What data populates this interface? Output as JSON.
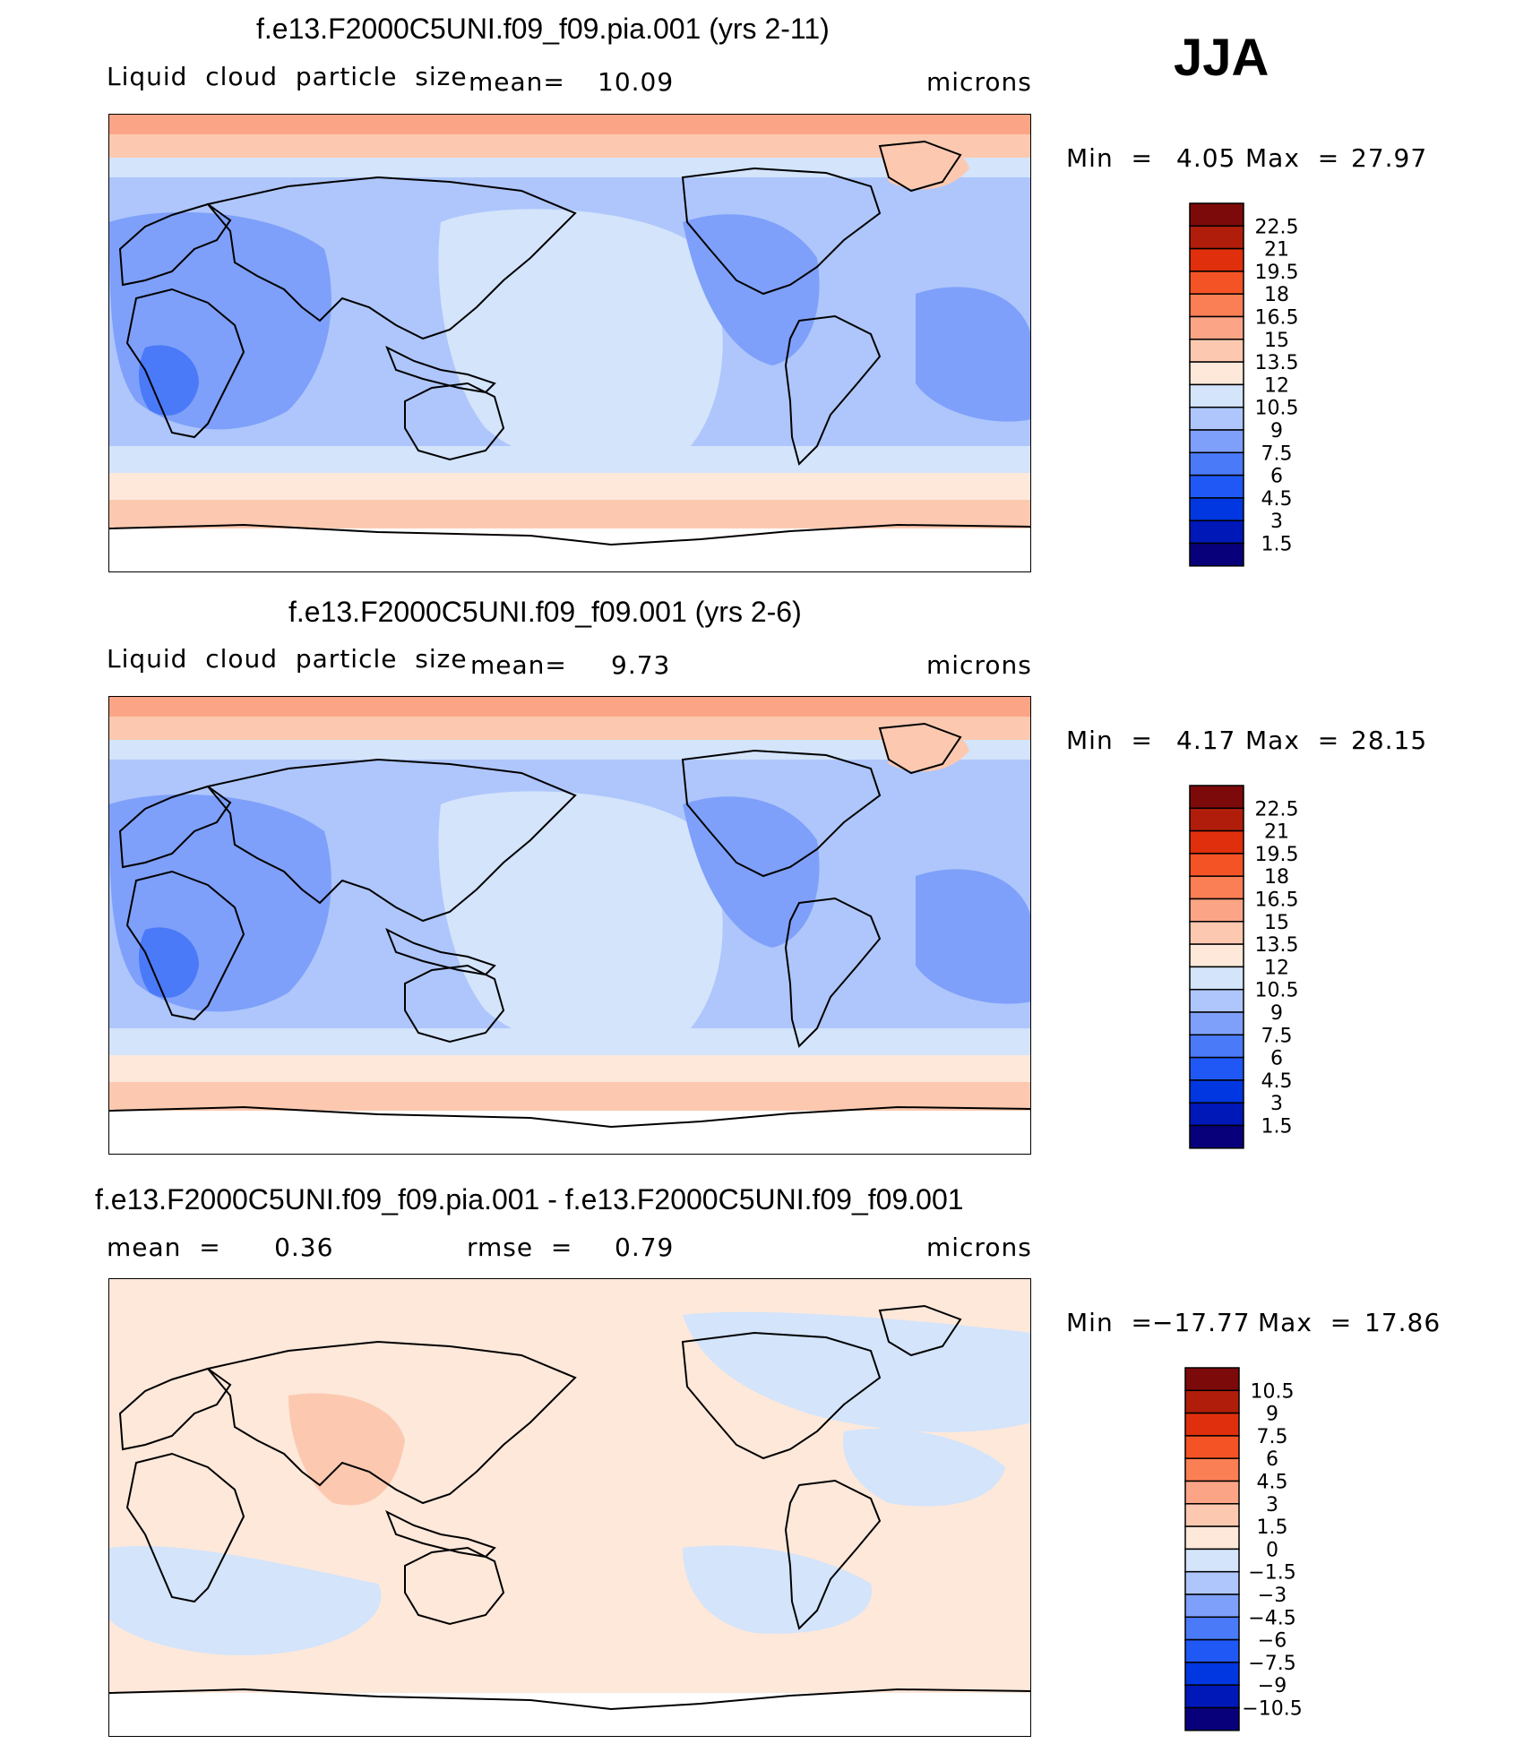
{
  "season": "JJA",
  "colors": {
    "abs_scale": [
      "#08007a",
      "#0018b8",
      "#0037e0",
      "#1f58f5",
      "#4a7af8",
      "#7ea0fa",
      "#aec6fb",
      "#d3e4fb",
      "#fde8da",
      "#fcc9b0",
      "#fca586",
      "#fb7f55",
      "#f45325",
      "#e02f0c",
      "#b01e0b",
      "#7d0a0a"
    ],
    "diff_scale": [
      "#08007a",
      "#0018b8",
      "#0037e0",
      "#1f58f5",
      "#4a7af8",
      "#7ea0fa",
      "#aec6fb",
      "#d3e4fb",
      "#fde8da",
      "#fcc9b0",
      "#fca586",
      "#fb7f55",
      "#f45325",
      "#e02f0c",
      "#b01e0b",
      "#7d0a0a"
    ],
    "land_outline": "#000000"
  },
  "panels": [
    {
      "title": "f.e13.F2000C5UNI.f09_f09.pia.001 (yrs 2-11)",
      "left_label": "Liquid  cloud  particle  size",
      "center_label": "mean=",
      "center_value": "10.09",
      "units": "microns",
      "min_label": "Min  =",
      "min_value": "4.05",
      "max_label": "Max  =",
      "max_value": "27.97",
      "scale": "abs",
      "levels": [
        "22.5",
        "21",
        "19.5",
        "18",
        "16.5",
        "15",
        "13.5",
        "12",
        "10.5",
        "9",
        "7.5",
        "6",
        "4.5",
        "3",
        "1.5"
      ]
    },
    {
      "title": "f.e13.F2000C5UNI.f09_f09.001 (yrs 2-6)",
      "left_label": "Liquid  cloud  particle  size",
      "center_label": "mean=",
      "center_value": "9.73",
      "units": "microns",
      "min_label": "Min  =",
      "min_value": "4.17",
      "max_label": "Max  =",
      "max_value": "28.15",
      "scale": "abs",
      "levels": [
        "22.5",
        "21",
        "19.5",
        "18",
        "16.5",
        "15",
        "13.5",
        "12",
        "10.5",
        "9",
        "7.5",
        "6",
        "4.5",
        "3",
        "1.5"
      ]
    },
    {
      "title": "f.e13.F2000C5UNI.f09_f09.pia.001 - f.e13.F2000C5UNI.f09_f09.001",
      "left_label": "mean  =      0.36",
      "center_label": "rmse  =",
      "center_value": "0.79",
      "units": "microns",
      "min_label": "Min  =",
      "min_value": "−17.77",
      "max_label": "Max  =",
      "max_value": "17.86",
      "scale": "diff",
      "levels": [
        "10.5",
        "9",
        "7.5",
        "6",
        "4.5",
        "3",
        "1.5",
        "0",
        "−1.5",
        "−3",
        "−4.5",
        "−6",
        "−7.5",
        "−9",
        "−10.5"
      ]
    }
  ]
}
